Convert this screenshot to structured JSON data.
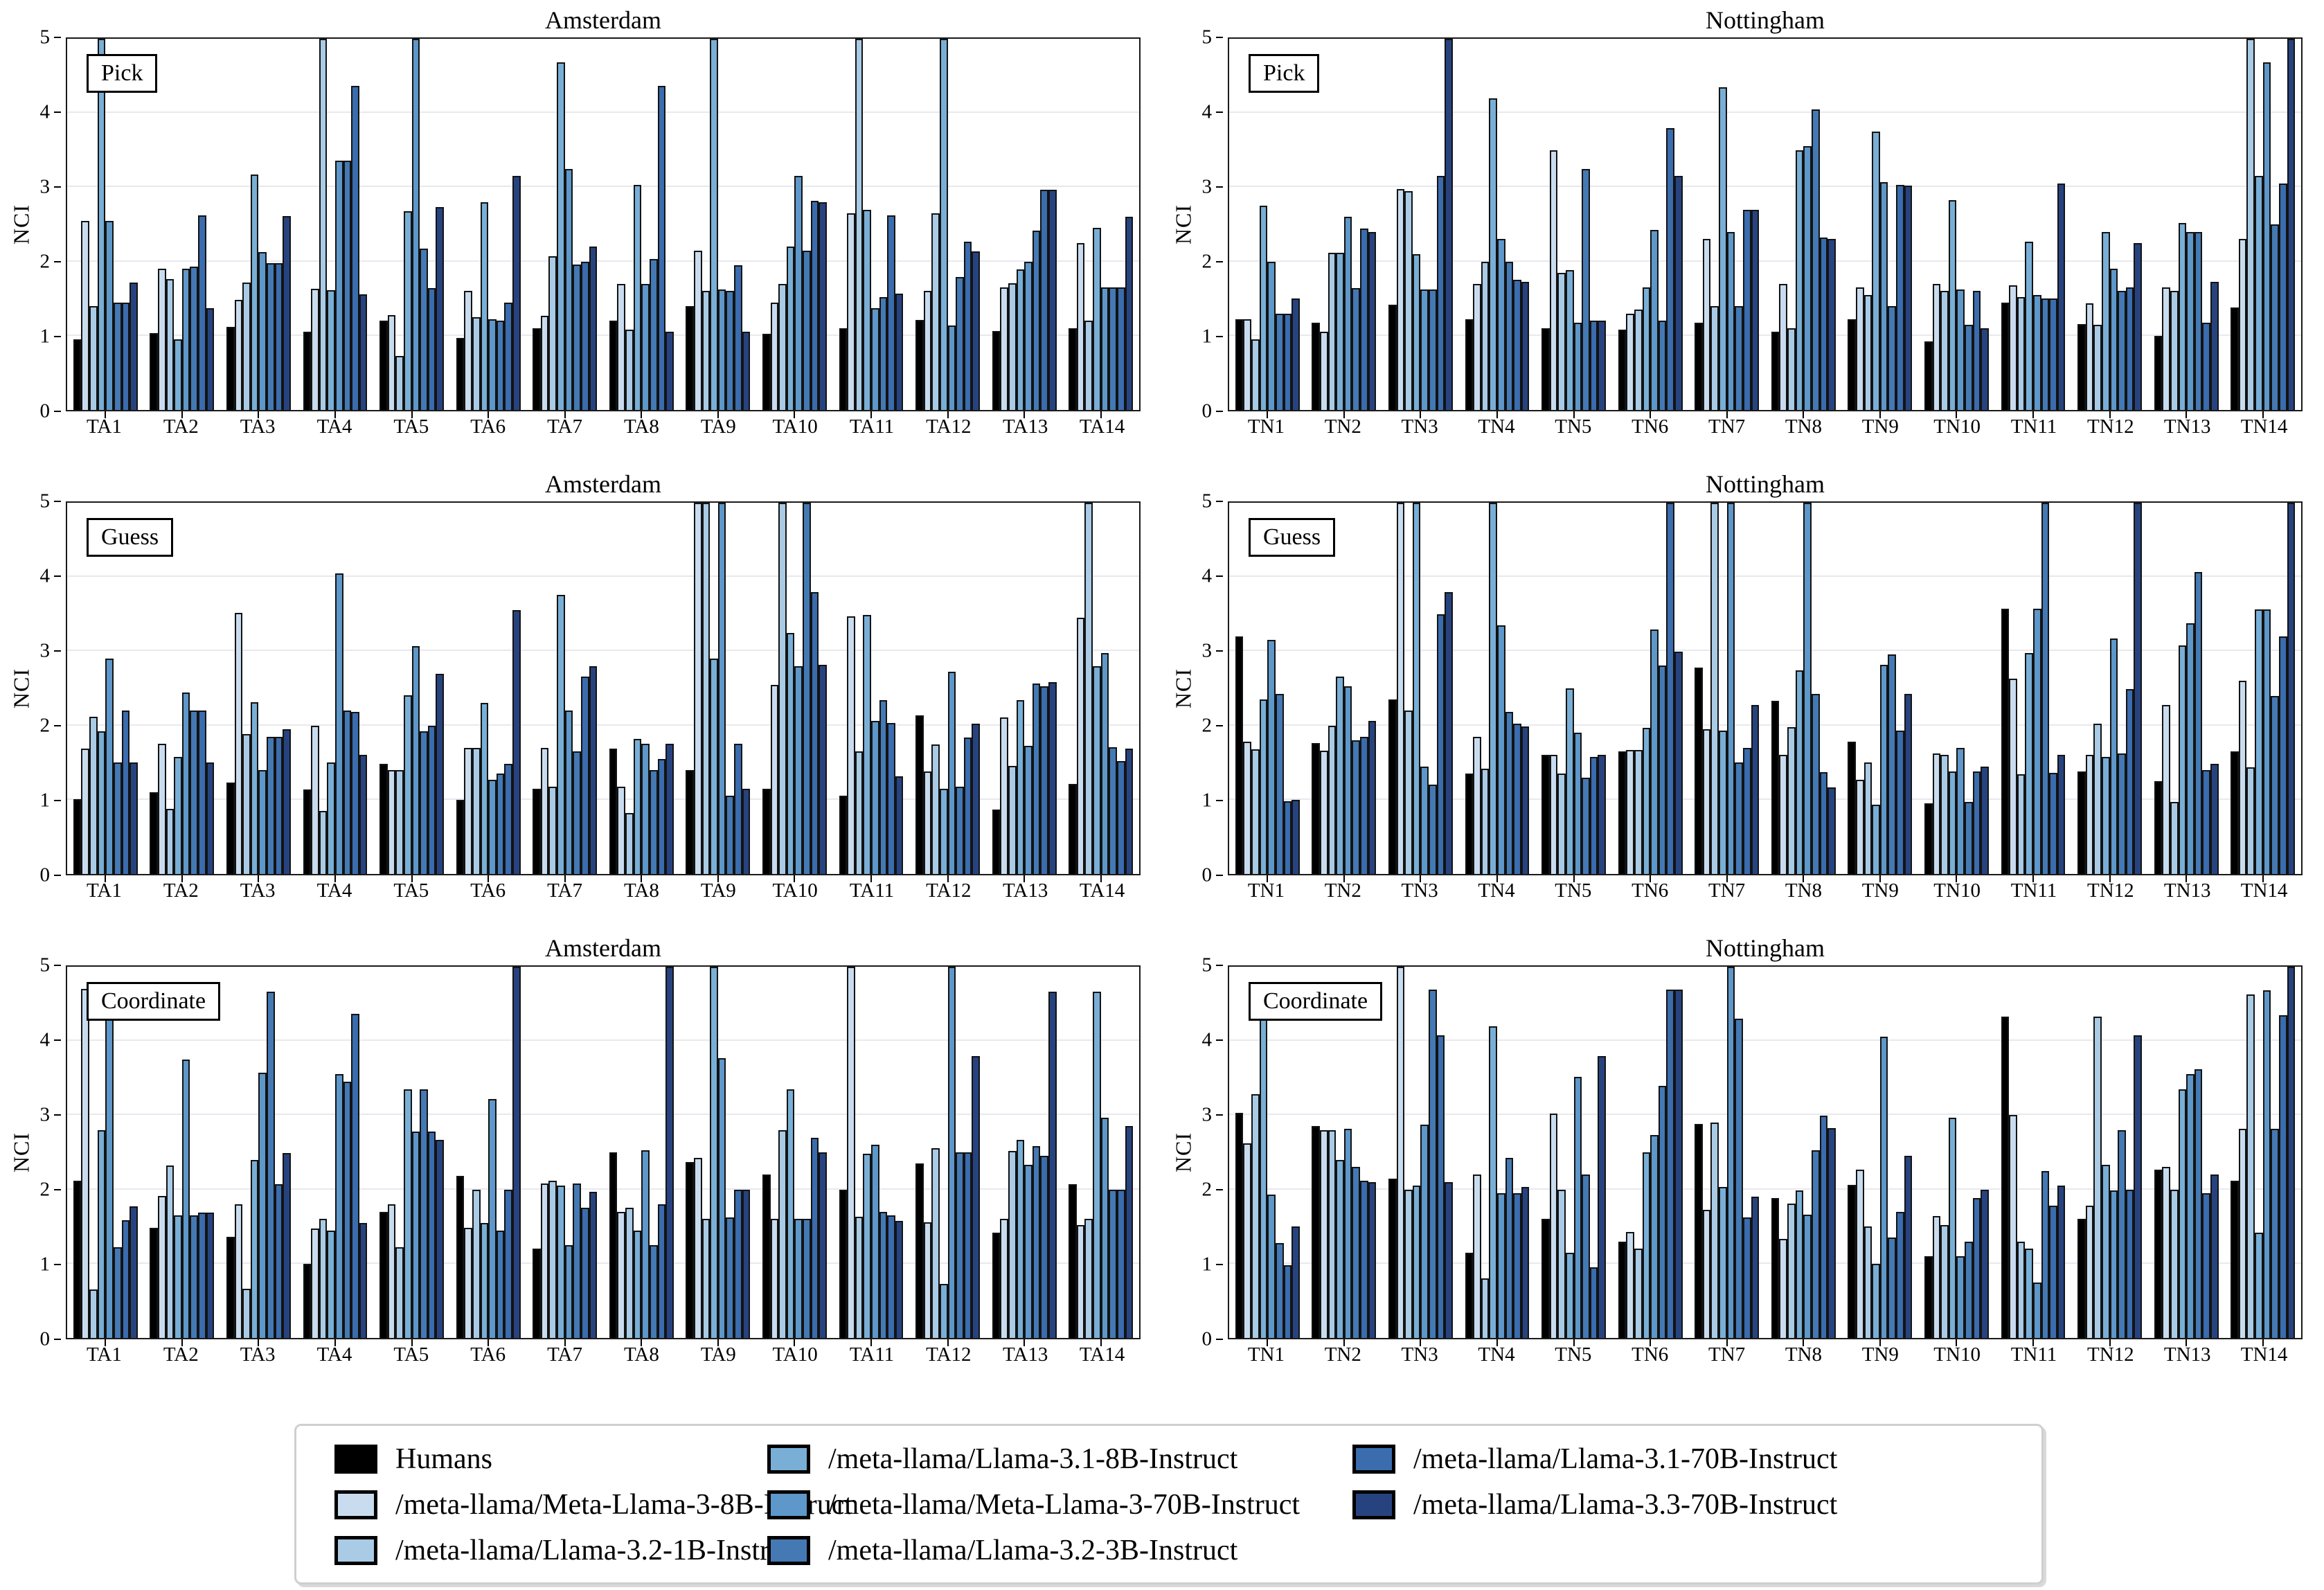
{
  "chart_data": {
    "type": "bar",
    "ylabel": "NCI",
    "ylim": [
      0,
      5
    ],
    "yticks": [
      0,
      1,
      2,
      3,
      4,
      5
    ],
    "grid": true,
    "legend_position": "bottom",
    "series": [
      {
        "name": "Humans",
        "color": "#000000"
      },
      {
        "name": "/meta-llama/Meta-Llama-3-8B-Instruct",
        "color": "#c9dcef"
      },
      {
        "name": "/meta-llama/Llama-3.2-1B-Instruct",
        "color": "#a9cbe6"
      },
      {
        "name": "/meta-llama/Llama-3.1-8B-Instruct",
        "color": "#79afd6"
      },
      {
        "name": "/meta-llama/Meta-Llama-3-70B-Instruct",
        "color": "#5e97c9"
      },
      {
        "name": "/meta-llama/Llama-3.2-3B-Instruct",
        "color": "#4479b4"
      },
      {
        "name": "/meta-llama/Llama-3.1-70B-Instruct",
        "color": "#3a6cae"
      },
      {
        "name": "/meta-llama/Llama-3.3-70B-Instruct",
        "color": "#27437f"
      }
    ],
    "panels": [
      {
        "task": "Pick",
        "city": "Amsterdam",
        "categories": [
          "TA1",
          "TA2",
          "TA3",
          "TA4",
          "TA5",
          "TA6",
          "TA7",
          "TA8",
          "TA9",
          "TA10",
          "TA11",
          "TA12",
          "TA13",
          "TA14"
        ],
        "values": [
          [
            0.95,
            2.55,
            1.4,
            5.0,
            2.55,
            1.45,
            1.45,
            1.72
          ],
          [
            1.04,
            1.9,
            1.76,
            0.95,
            1.9,
            1.93,
            2.62,
            1.37
          ],
          [
            1.12,
            1.48,
            1.72,
            3.17,
            2.13,
            1.98,
            1.98,
            2.61
          ],
          [
            1.05,
            1.63,
            5.0,
            1.61,
            3.36,
            3.36,
            4.37,
            1.56
          ],
          [
            1.2,
            1.28,
            0.73,
            2.68,
            5.0,
            2.17,
            1.64,
            2.73
          ],
          [
            0.97,
            1.6,
            1.25,
            2.8,
            1.22,
            1.2,
            1.45,
            3.15
          ],
          [
            1.1,
            1.27,
            2.07,
            4.68,
            3.25,
            1.96,
            2.0,
            2.2
          ],
          [
            1.2,
            1.7,
            1.08,
            3.03,
            1.7,
            2.03,
            4.37,
            1.05
          ],
          [
            1.4,
            2.15,
            1.6,
            5.0,
            1.62,
            1.6,
            1.95,
            1.05
          ],
          [
            1.03,
            1.45,
            1.7,
            2.2,
            3.15,
            2.15,
            2.82,
            2.8
          ],
          [
            1.1,
            2.65,
            5.0,
            2.7,
            1.37,
            1.52,
            2.62,
            1.57
          ],
          [
            1.21,
            1.6,
            2.65,
            5.0,
            1.14,
            1.79,
            2.27,
            2.14
          ],
          [
            1.06,
            1.65,
            1.71,
            1.89,
            2.0,
            2.42,
            2.97,
            2.97
          ],
          [
            1.1,
            2.25,
            1.2,
            2.45,
            1.65,
            1.65,
            1.65,
            2.6
          ]
        ]
      },
      {
        "task": "Pick",
        "city": "Nottingham",
        "categories": [
          "TN1",
          "TN2",
          "TN3",
          "TN4",
          "TN5",
          "TN6",
          "TN7",
          "TN8",
          "TN9",
          "TN10",
          "TN11",
          "TN12",
          "TN13",
          "TN14"
        ],
        "values": [
          [
            1.22,
            1.22,
            0.95,
            2.75,
            2.0,
            1.3,
            1.3,
            1.5
          ],
          [
            1.18,
            1.05,
            2.12,
            2.12,
            2.6,
            1.64,
            2.44,
            2.4
          ],
          [
            1.42,
            2.98,
            2.95,
            2.1,
            1.62,
            1.62,
            3.15,
            5.0
          ],
          [
            1.22,
            1.7,
            2.0,
            4.2,
            2.3,
            2.0,
            1.75,
            1.73
          ],
          [
            1.1,
            3.5,
            1.85,
            1.88,
            1.18,
            3.25,
            1.2,
            1.2
          ],
          [
            1.08,
            1.3,
            1.35,
            1.65,
            2.43,
            1.2,
            3.8,
            3.15
          ],
          [
            1.18,
            2.3,
            1.4,
            4.35,
            2.4,
            1.4,
            2.7,
            2.7
          ],
          [
            1.05,
            1.7,
            1.1,
            3.5,
            3.55,
            4.05,
            2.32,
            2.3
          ],
          [
            1.22,
            1.65,
            1.55,
            3.75,
            3.07,
            1.4,
            3.03,
            3.02
          ],
          [
            0.92,
            1.7,
            1.6,
            2.83,
            1.62,
            1.15,
            1.6,
            1.1
          ],
          [
            1.45,
            1.68,
            1.52,
            2.27,
            1.55,
            1.5,
            1.5,
            3.05
          ],
          [
            1.16,
            1.44,
            1.15,
            2.4,
            1.9,
            1.6,
            1.65,
            2.25
          ],
          [
            1.0,
            1.65,
            1.6,
            2.52,
            2.4,
            2.4,
            1.18,
            1.73
          ],
          [
            1.38,
            2.3,
            5.0,
            3.15,
            4.68,
            2.5,
            3.05,
            5.0
          ]
        ]
      },
      {
        "task": "Guess",
        "city": "Amsterdam",
        "categories": [
          "TA1",
          "TA2",
          "TA3",
          "TA4",
          "TA5",
          "TA6",
          "TA7",
          "TA8",
          "TA9",
          "TA10",
          "TA11",
          "TA12",
          "TA13",
          "TA14"
        ],
        "values": [
          [
            1.01,
            1.69,
            2.12,
            1.92,
            2.9,
            1.5,
            2.2,
            1.5
          ],
          [
            1.1,
            1.75,
            0.88,
            1.58,
            2.44,
            2.2,
            2.2,
            1.5
          ],
          [
            1.23,
            3.52,
            1.88,
            2.31,
            1.4,
            1.85,
            1.85,
            1.95
          ],
          [
            1.14,
            2.0,
            0.85,
            1.5,
            4.05,
            2.2,
            2.18,
            1.6
          ],
          [
            1.48,
            1.4,
            1.4,
            2.41,
            3.07,
            1.92,
            2.0,
            2.7
          ],
          [
            1.0,
            1.7,
            1.7,
            2.3,
            1.27,
            1.35,
            1.48,
            3.55
          ],
          [
            1.15,
            1.7,
            1.18,
            3.76,
            2.2,
            1.65,
            2.66,
            2.8
          ],
          [
            1.69,
            1.18,
            0.82,
            1.82,
            1.75,
            1.4,
            1.55,
            1.75
          ],
          [
            1.4,
            5.0,
            5.0,
            2.9,
            5.0,
            1.05,
            1.75,
            1.15
          ],
          [
            1.15,
            2.55,
            5.0,
            3.25,
            2.8,
            5.0,
            3.8,
            2.82
          ],
          [
            1.05,
            3.47,
            1.65,
            3.49,
            2.06,
            2.34,
            2.03,
            1.32
          ],
          [
            2.14,
            1.38,
            1.74,
            1.15,
            2.72,
            1.18,
            1.84,
            2.02
          ],
          [
            0.87,
            2.11,
            1.46,
            2.34,
            1.73,
            2.57,
            2.53,
            2.58
          ],
          [
            1.21,
            3.45,
            5.0,
            2.8,
            2.98,
            1.71,
            1.52,
            1.69
          ]
        ]
      },
      {
        "task": "Guess",
        "city": "Nottingham",
        "categories": [
          "TN1",
          "TN2",
          "TN3",
          "TN4",
          "TN5",
          "TN6",
          "TN7",
          "TN8",
          "TN9",
          "TN10",
          "TN11",
          "TN12",
          "TN13",
          "TN14"
        ],
        "values": [
          [
            3.2,
            1.78,
            1.68,
            2.35,
            3.15,
            2.43,
            0.98,
            1.0
          ],
          [
            1.76,
            1.66,
            2.0,
            2.66,
            2.53,
            1.8,
            1.85,
            2.06
          ],
          [
            2.35,
            5.0,
            2.2,
            5.0,
            1.45,
            1.2,
            3.5,
            3.8
          ],
          [
            1.35,
            1.85,
            1.42,
            5.0,
            3.35,
            2.18,
            2.02,
            1.99
          ],
          [
            1.6,
            1.6,
            1.35,
            2.5,
            1.9,
            1.3,
            1.58,
            1.6
          ],
          [
            1.65,
            1.67,
            1.67,
            1.97,
            3.29,
            2.81,
            5.0,
            2.99
          ],
          [
            2.78,
            1.95,
            5.0,
            1.93,
            5.0,
            1.5,
            1.7,
            2.28
          ],
          [
            2.33,
            1.6,
            1.98,
            2.74,
            5.0,
            2.43,
            1.37,
            1.17
          ],
          [
            1.78,
            1.27,
            1.5,
            0.93,
            2.82,
            2.96,
            1.93,
            2.43
          ],
          [
            0.95,
            1.62,
            1.6,
            1.38,
            1.7,
            0.97,
            1.38,
            1.45
          ],
          [
            3.57,
            2.63,
            1.34,
            2.98,
            3.57,
            5.0,
            1.36,
            1.6
          ],
          [
            1.38,
            1.6,
            2.02,
            1.58,
            3.17,
            1.62,
            2.49,
            5.0
          ],
          [
            1.25,
            2.28,
            0.97,
            3.08,
            3.38,
            4.07,
            1.4,
            1.48
          ],
          [
            1.65,
            2.6,
            1.44,
            3.56,
            3.56,
            2.4,
            3.2,
            5.0
          ]
        ]
      },
      {
        "task": "Coordinate",
        "city": "Amsterdam",
        "categories": [
          "TA1",
          "TA2",
          "TA3",
          "TA4",
          "TA5",
          "TA6",
          "TA7",
          "TA8",
          "TA9",
          "TA10",
          "TA11",
          "TA12",
          "TA13",
          "TA14"
        ],
        "values": [
          [
            2.12,
            4.7,
            0.65,
            2.8,
            4.53,
            1.22,
            1.59,
            1.77
          ],
          [
            1.48,
            1.91,
            2.32,
            1.65,
            3.75,
            1.65,
            1.69,
            1.69
          ],
          [
            1.36,
            1.8,
            0.66,
            2.4,
            3.57,
            4.66,
            2.07,
            2.49
          ],
          [
            1.0,
            1.47,
            1.6,
            1.45,
            3.55,
            3.45,
            4.37,
            1.55
          ],
          [
            1.7,
            1.8,
            1.22,
            3.35,
            2.78,
            3.35,
            2.78,
            2.67
          ],
          [
            2.18,
            1.48,
            2.0,
            1.55,
            3.22,
            1.45,
            2.0,
            5.0
          ],
          [
            1.2,
            2.08,
            2.12,
            2.05,
            1.25,
            2.08,
            1.75,
            1.97
          ],
          [
            2.5,
            1.7,
            1.75,
            1.45,
            2.53,
            1.25,
            1.8,
            5.0
          ],
          [
            2.37,
            2.43,
            1.6,
            5.0,
            3.77,
            1.62,
            2.0,
            2.0
          ],
          [
            2.2,
            1.6,
            2.8,
            3.35,
            1.6,
            1.6,
            2.7,
            2.5
          ],
          [
            2.0,
            5.0,
            1.63,
            2.48,
            2.6,
            1.7,
            1.65,
            1.58
          ],
          [
            2.35,
            1.56,
            2.56,
            0.73,
            5.0,
            2.5,
            2.5,
            3.8
          ],
          [
            1.42,
            1.6,
            2.52,
            2.67,
            2.33,
            2.58,
            2.45,
            4.66
          ],
          [
            2.07,
            1.52,
            1.6,
            4.66,
            2.97,
            2.0,
            2.0,
            2.85
          ]
        ]
      },
      {
        "task": "Coordinate",
        "city": "Nottingham",
        "categories": [
          "TN1",
          "TN2",
          "TN3",
          "TN4",
          "TN5",
          "TN6",
          "TN7",
          "TN8",
          "TN9",
          "TN10",
          "TN11",
          "TN12",
          "TN13",
          "TN14"
        ],
        "values": [
          [
            3.03,
            2.62,
            3.28,
            4.37,
            1.93,
            1.28,
            0.98,
            1.5
          ],
          [
            2.85,
            2.8,
            2.8,
            2.4,
            2.82,
            2.3,
            2.12,
            2.1
          ],
          [
            2.15,
            5.0,
            2.0,
            2.05,
            2.87,
            4.69,
            4.08,
            2.1
          ],
          [
            1.15,
            2.2,
            0.8,
            4.2,
            1.95,
            2.43,
            1.95,
            2.03
          ],
          [
            1.6,
            3.02,
            2.0,
            1.15,
            3.52,
            2.2,
            0.95,
            3.8
          ],
          [
            1.3,
            1.43,
            1.2,
            2.5,
            2.73,
            3.4,
            4.69,
            4.69
          ],
          [
            2.88,
            1.73,
            2.9,
            2.03,
            5.0,
            4.3,
            1.62,
            1.9
          ],
          [
            1.88,
            1.33,
            1.81,
            1.99,
            1.66,
            2.53,
            2.99,
            2.83
          ],
          [
            2.06,
            2.27,
            1.5,
            1.0,
            4.06,
            1.35,
            1.7,
            2.45
          ],
          [
            1.1,
            1.64,
            1.52,
            2.97,
            1.1,
            1.3,
            1.88,
            2.0
          ],
          [
            4.33,
            3.0,
            1.3,
            1.2,
            0.75,
            2.25,
            1.78,
            2.05
          ],
          [
            1.6,
            1.78,
            4.33,
            2.33,
            1.99,
            2.8,
            2.0,
            4.08
          ],
          [
            2.27,
            2.3,
            2.0,
            3.35,
            3.55,
            3.62,
            1.95,
            2.2
          ],
          [
            2.12,
            2.82,
            4.63,
            1.42,
            4.68,
            2.82,
            4.35,
            5.0
          ]
        ]
      }
    ]
  },
  "legend": {
    "columns": [
      [
        0,
        1,
        2
      ],
      [
        3,
        4,
        5
      ],
      [
        6,
        7
      ]
    ],
    "entries": [
      {
        "label": "Humans"
      },
      {
        "label": "/meta-llama/Meta-Llama-3-8B-Instruct"
      },
      {
        "label": "/meta-llama/Llama-3.2-1B-Instruct"
      },
      {
        "label": "/meta-llama/Llama-3.1-8B-Instruct"
      },
      {
        "label": "/meta-llama/Meta-Llama-3-70B-Instruct"
      },
      {
        "label": "/meta-llama/Llama-3.2-3B-Instruct"
      },
      {
        "label": "/meta-llama/Llama-3.1-70B-Instruct"
      },
      {
        "label": "/meta-llama/Llama-3.3-70B-Instruct"
      }
    ]
  }
}
